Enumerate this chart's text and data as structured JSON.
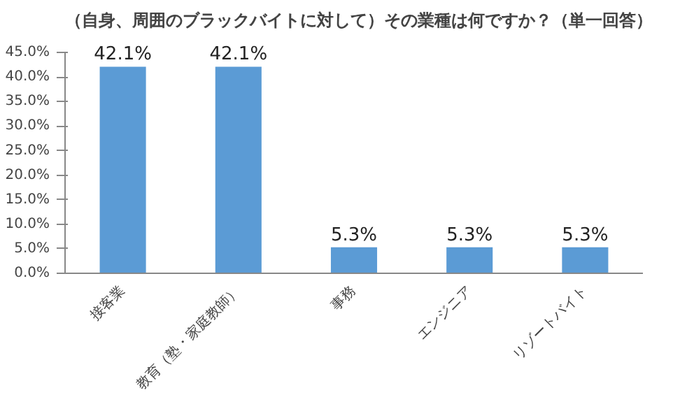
{
  "chart_data": {
    "type": "bar",
    "title": "（自身、周囲のブラックバイトに対して）その業種は何ですか？（単一回答）",
    "categories": [
      "接客業",
      "教育（塾・家庭教師）",
      "事務",
      "エンジニア",
      "リゾートバイト"
    ],
    "values": [
      42.1,
      42.1,
      5.3,
      5.3,
      5.3
    ],
    "value_labels": [
      "42.1%",
      "42.1%",
      "5.3%",
      "5.3%",
      "5.3%"
    ],
    "color": "#5b9bd5",
    "ylim": [
      0,
      45
    ],
    "yticks": [
      {
        "value": 0,
        "label": "0.0%"
      },
      {
        "value": 5,
        "label": "5.0%"
      },
      {
        "value": 10,
        "label": "10.0%"
      },
      {
        "value": 15,
        "label": "15.0%"
      },
      {
        "value": 20,
        "label": "20.0%"
      },
      {
        "value": 25,
        "label": "25.0%"
      },
      {
        "value": 30,
        "label": "30.0%"
      },
      {
        "value": 35,
        "label": "35.0%"
      },
      {
        "value": 40,
        "label": "40.0%"
      },
      {
        "value": 45,
        "label": "45.0%"
      }
    ],
    "grid": false
  }
}
